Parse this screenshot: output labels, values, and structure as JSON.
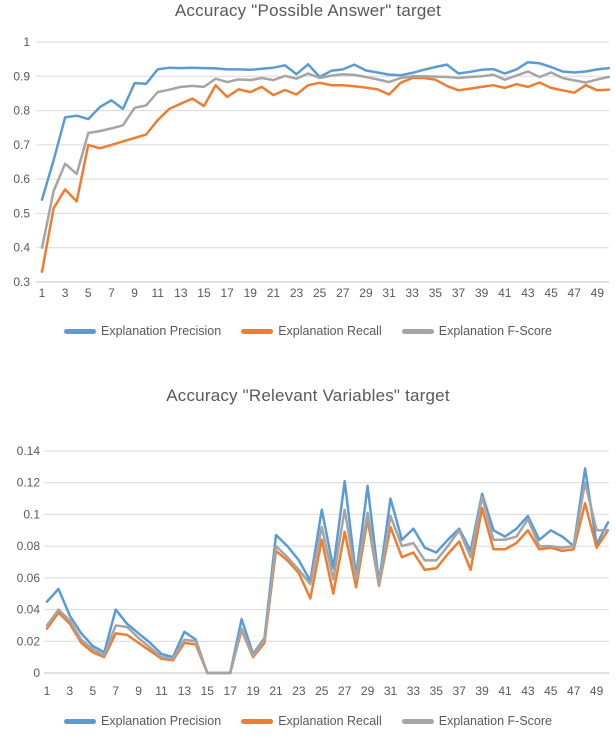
{
  "page": {
    "background": "#ffffff",
    "text_color": "#595959",
    "gridline_color": "#d9d9d9"
  },
  "chart_data": [
    {
      "type": "line",
      "title": "Accuracy \"Possible Answer\" target",
      "xlabel": "",
      "ylabel": "",
      "ylim": [
        0.3,
        1.0
      ],
      "grid": "horizontal",
      "legend_position": "bottom",
      "y_tick_labels": [
        "1",
        "0.9",
        "0.8",
        "0.7",
        "0.6",
        "0.5",
        "0.4",
        "0.3"
      ],
      "y_tick_values": [
        1.0,
        0.9,
        0.8,
        0.7,
        0.6,
        0.5,
        0.4,
        0.3
      ],
      "x_tick_labels": [
        "1",
        "3",
        "5",
        "7",
        "9",
        "11",
        "13",
        "15",
        "17",
        "19",
        "21",
        "23",
        "25",
        "27",
        "29",
        "31",
        "33",
        "35",
        "37",
        "39",
        "41",
        "43",
        "45",
        "47",
        "49"
      ],
      "x": [
        1,
        2,
        3,
        4,
        5,
        6,
        7,
        8,
        9,
        10,
        11,
        12,
        13,
        14,
        15,
        16,
        17,
        18,
        19,
        20,
        21,
        22,
        23,
        24,
        25,
        26,
        27,
        28,
        29,
        30,
        31,
        32,
        33,
        34,
        35,
        36,
        37,
        38,
        39,
        40,
        41,
        42,
        43,
        44,
        45,
        46,
        47,
        48,
        49,
        50
      ],
      "series": [
        {
          "name": "Explanation Precision",
          "color": "#5B9BD5",
          "values": [
            0.54,
            0.655,
            0.78,
            0.785,
            0.775,
            0.81,
            0.83,
            0.805,
            0.88,
            0.878,
            0.92,
            0.925,
            0.924,
            0.925,
            0.924,
            0.923,
            0.92,
            0.92,
            0.919,
            0.922,
            0.925,
            0.932,
            0.906,
            0.935,
            0.898,
            0.916,
            0.92,
            0.934,
            0.917,
            0.911,
            0.905,
            0.903,
            0.91,
            0.919,
            0.927,
            0.934,
            0.908,
            0.913,
            0.919,
            0.921,
            0.908,
            0.92,
            0.941,
            0.938,
            0.927,
            0.914,
            0.911,
            0.914,
            0.92,
            0.924
          ]
        },
        {
          "name": "Explanation Recall",
          "color": "#ED7D31",
          "values": [
            0.33,
            0.515,
            0.57,
            0.535,
            0.7,
            0.69,
            0.7,
            0.71,
            0.72,
            0.73,
            0.772,
            0.805,
            0.82,
            0.835,
            0.813,
            0.874,
            0.84,
            0.862,
            0.854,
            0.869,
            0.845,
            0.86,
            0.847,
            0.874,
            0.881,
            0.874,
            0.874,
            0.871,
            0.867,
            0.862,
            0.847,
            0.881,
            0.895,
            0.895,
            0.89,
            0.872,
            0.859,
            0.864,
            0.869,
            0.874,
            0.866,
            0.877,
            0.869,
            0.882,
            0.866,
            0.859,
            0.852,
            0.874,
            0.859,
            0.861
          ]
        },
        {
          "name": "Explanation F-Score",
          "color": "#A5A5A5",
          "values": [
            0.4,
            0.565,
            0.645,
            0.615,
            0.735,
            0.74,
            0.748,
            0.757,
            0.808,
            0.815,
            0.854,
            0.861,
            0.869,
            0.872,
            0.869,
            0.893,
            0.883,
            0.891,
            0.889,
            0.895,
            0.889,
            0.901,
            0.893,
            0.908,
            0.895,
            0.902,
            0.906,
            0.904,
            0.898,
            0.891,
            0.883,
            0.895,
            0.9,
            0.9,
            0.899,
            0.898,
            0.895,
            0.898,
            0.9,
            0.905,
            0.89,
            0.902,
            0.914,
            0.898,
            0.911,
            0.895,
            0.888,
            0.882,
            0.891,
            0.898
          ]
        }
      ]
    },
    {
      "type": "line",
      "title": "Accuracy \"Relevant Variables\" target",
      "xlabel": "",
      "ylabel": "",
      "ylim": [
        0,
        0.14
      ],
      "grid": "horizontal",
      "legend_position": "bottom",
      "y_tick_labels": [
        "0.14",
        "0.12",
        "0.1",
        "0.08",
        "0.06",
        "0.04",
        "0.02",
        "0"
      ],
      "y_tick_values": [
        0.14,
        0.12,
        0.1,
        0.08,
        0.06,
        0.04,
        0.02,
        0
      ],
      "x_tick_labels": [
        "1",
        "3",
        "5",
        "7",
        "9",
        "11",
        "13",
        "15",
        "17",
        "19",
        "21",
        "23",
        "25",
        "27",
        "29",
        "31",
        "33",
        "35",
        "37",
        "39",
        "41",
        "43",
        "45",
        "47",
        "49"
      ],
      "x": [
        1,
        2,
        3,
        4,
        5,
        6,
        7,
        8,
        9,
        10,
        11,
        12,
        13,
        14,
        15,
        16,
        17,
        18,
        19,
        20,
        21,
        22,
        23,
        24,
        25,
        26,
        27,
        28,
        29,
        30,
        31,
        32,
        33,
        34,
        35,
        36,
        37,
        38,
        39,
        40,
        41,
        42,
        43,
        44,
        45,
        46,
        47,
        48,
        49,
        50
      ],
      "series": [
        {
          "name": "Explanation Precision",
          "color": "#5B9BD5",
          "values": [
            0.045,
            0.053,
            0.036,
            0.025,
            0.017,
            0.013,
            0.04,
            0.031,
            0.025,
            0.019,
            0.012,
            0.01,
            0.026,
            0.021,
            0,
            0,
            0,
            0.034,
            0.012,
            0.022,
            0.087,
            0.08,
            0.071,
            0.058,
            0.103,
            0.066,
            0.121,
            0.061,
            0.118,
            0.057,
            0.11,
            0.084,
            0.091,
            0.079,
            0.076,
            0.084,
            0.091,
            0.077,
            0.113,
            0.09,
            0.086,
            0.091,
            0.099,
            0.084,
            0.09,
            0.086,
            0.08,
            0.129,
            0.081,
            0.095
          ]
        },
        {
          "name": "Explanation Recall",
          "color": "#ED7D31",
          "values": [
            0.028,
            0.038,
            0.031,
            0.019,
            0.013,
            0.01,
            0.025,
            0.024,
            0.019,
            0.014,
            0.009,
            0.008,
            0.019,
            0.018,
            0,
            0,
            0,
            0.027,
            0.01,
            0.019,
            0.077,
            0.071,
            0.063,
            0.047,
            0.084,
            0.05,
            0.089,
            0.054,
            0.097,
            0.055,
            0.092,
            0.073,
            0.076,
            0.065,
            0.066,
            0.075,
            0.083,
            0.065,
            0.104,
            0.078,
            0.078,
            0.082,
            0.09,
            0.078,
            0.079,
            0.077,
            0.078,
            0.107,
            0.079,
            0.09
          ]
        },
        {
          "name": "Explanation F-Score",
          "color": "#A5A5A5",
          "values": [
            0.03,
            0.04,
            0.033,
            0.021,
            0.015,
            0.011,
            0.03,
            0.029,
            0.022,
            0.016,
            0.01,
            0.009,
            0.021,
            0.02,
            0,
            0,
            0,
            0.028,
            0.011,
            0.021,
            0.08,
            0.073,
            0.065,
            0.056,
            0.092,
            0.059,
            0.103,
            0.059,
            0.101,
            0.056,
            0.099,
            0.08,
            0.082,
            0.071,
            0.071,
            0.08,
            0.09,
            0.073,
            0.111,
            0.084,
            0.084,
            0.086,
            0.097,
            0.08,
            0.08,
            0.079,
            0.08,
            0.12,
            0.09,
            0.09
          ]
        }
      ]
    }
  ]
}
